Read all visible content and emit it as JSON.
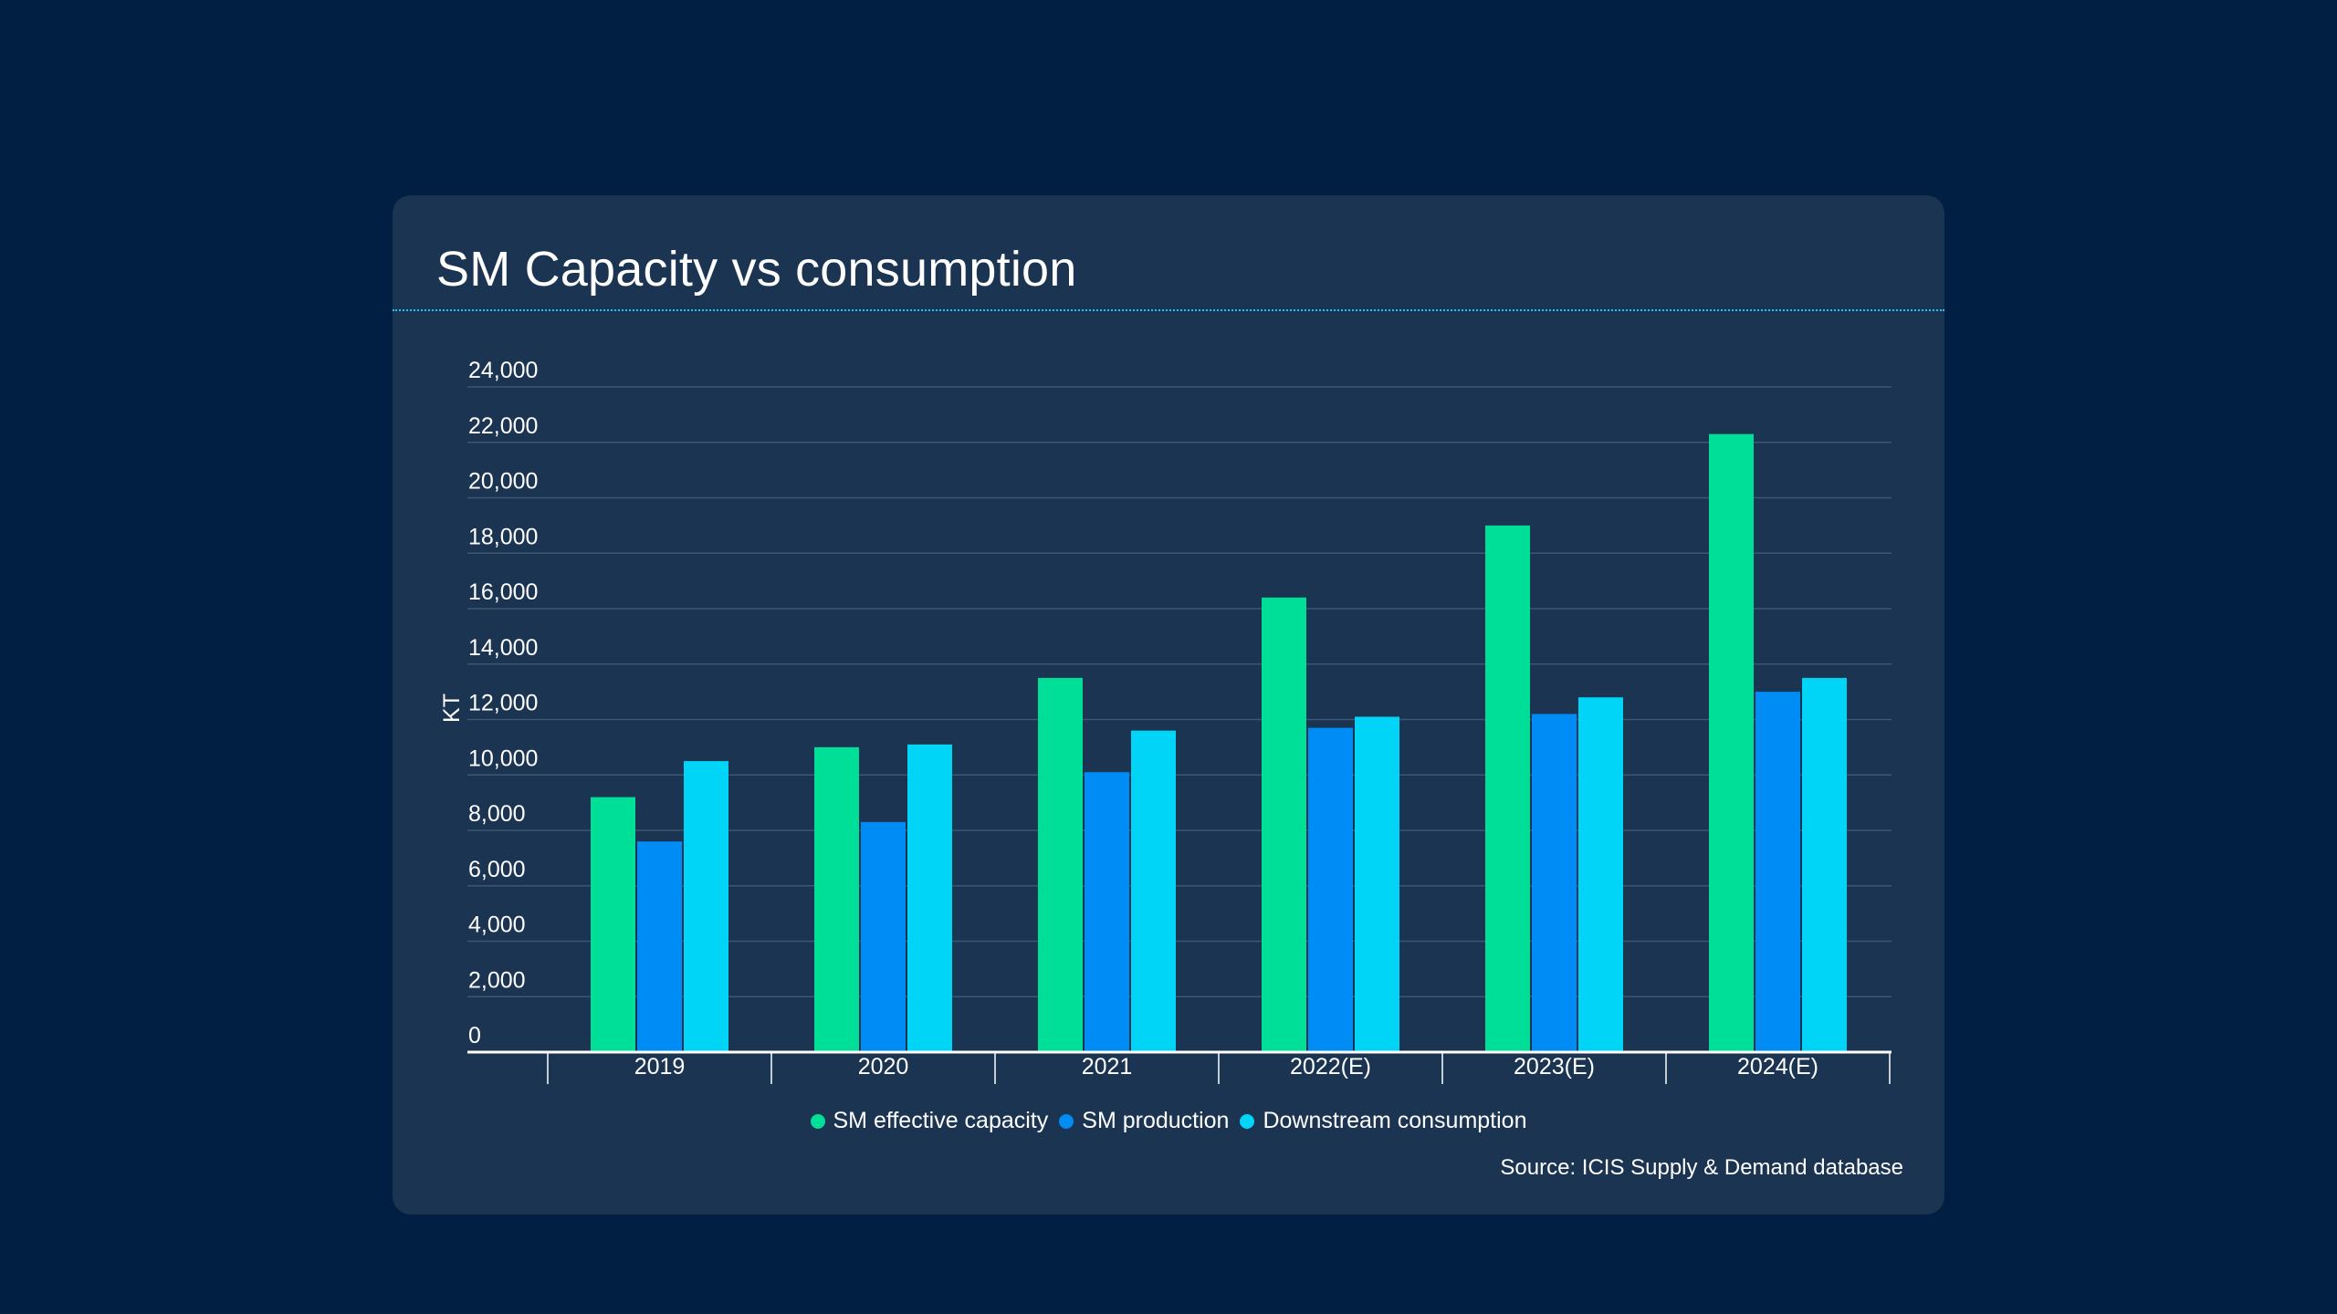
{
  "page": {
    "background_color": "#001f42",
    "card_color": "#1b3452",
    "separator_color": "#1ec8f0",
    "gridline_color": "#3d5673",
    "source": "Source: ICIS Supply & Demand database"
  },
  "chart_data": {
    "type": "bar",
    "title": "SM Capacity vs consumption",
    "xlabel": "",
    "ylabel": "KT",
    "categories": [
      "2019",
      "2020",
      "2021",
      "2022(E)",
      "2023(E)",
      "2024(E)"
    ],
    "series": [
      {
        "name": "SM effective capacity",
        "color": "#00df98",
        "values": [
          9200,
          11000,
          13500,
          16400,
          19000,
          22300
        ]
      },
      {
        "name": "SM production",
        "color": "#008cf5",
        "values": [
          7600,
          8300,
          10100,
          11700,
          12200,
          13000
        ]
      },
      {
        "name": "Downstream consumption",
        "color": "#00d4f7",
        "values": [
          10500,
          11100,
          11600,
          12100,
          12800,
          13500
        ]
      }
    ],
    "ylim": [
      0,
      24000
    ],
    "yticks": [
      0,
      2000,
      4000,
      6000,
      8000,
      10000,
      12000,
      14000,
      16000,
      18000,
      20000,
      22000,
      24000
    ],
    "ytick_labels": [
      "0",
      "2,000",
      "4,000",
      "6,000",
      "8,000",
      "10,000",
      "12,000",
      "14,000",
      "16,000",
      "18,000",
      "20,000",
      "22,000",
      "24,000"
    ],
    "grid": true,
    "legend_position": "bottom-center"
  }
}
